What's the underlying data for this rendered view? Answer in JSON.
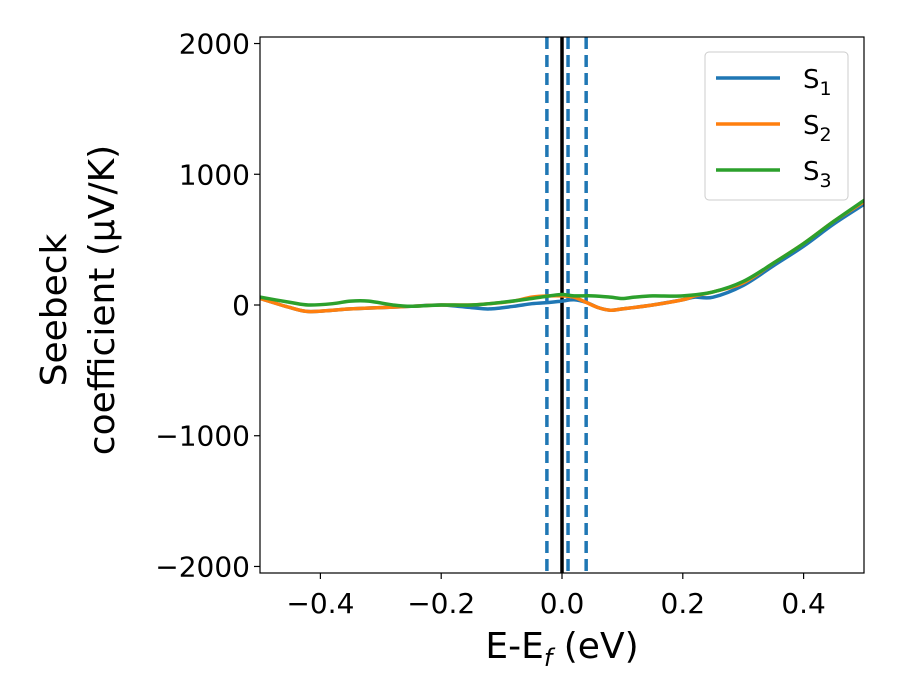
{
  "chart_data": {
    "type": "line",
    "xlabel": "E-E_f (eV)",
    "xlabel_parts": {
      "main": "E-E",
      "sub": "f",
      "rest": " (eV)"
    },
    "ylabel_line1": "Seebeck",
    "ylabel_line2": "coefficient  (μV/K)",
    "xlim": [
      -0.5,
      0.5
    ],
    "ylim": [
      -2050,
      2050
    ],
    "xticks": [
      -0.4,
      -0.2,
      0.0,
      0.2,
      0.4
    ],
    "xtick_labels": [
      "−0.4",
      "−0.2",
      "0.0",
      "0.2",
      "0.4"
    ],
    "yticks": [
      -2000,
      -1000,
      0,
      1000,
      2000
    ],
    "ytick_labels": [
      "−2000",
      "−1000",
      "0",
      "1000",
      "2000"
    ],
    "grid": false,
    "legend_position": "top-right",
    "vertical_lines": [
      {
        "x": -0.025,
        "style": "dashed",
        "color": "#1f77b4"
      },
      {
        "x": 0.0,
        "style": "solid",
        "color": "#000000"
      },
      {
        "x": 0.01,
        "style": "dashed",
        "color": "#1f77b4"
      },
      {
        "x": 0.04,
        "style": "dashed",
        "color": "#1f77b4"
      }
    ],
    "series": [
      {
        "name": "S_1",
        "label_main": "S",
        "label_sub": "1",
        "color": "#1f77b4",
        "x": [
          -0.5,
          -0.45,
          -0.42,
          -0.38,
          -0.35,
          -0.3,
          -0.25,
          -0.2,
          -0.15,
          -0.12,
          -0.08,
          -0.05,
          -0.02,
          0.0,
          0.02,
          0.04,
          0.06,
          0.08,
          0.1,
          0.15,
          0.2,
          0.22,
          0.25,
          0.3,
          0.35,
          0.4,
          0.45,
          0.5
        ],
        "y": [
          50,
          -20,
          -50,
          -40,
          -30,
          -20,
          -10,
          0,
          -20,
          -30,
          -10,
          10,
          20,
          30,
          40,
          20,
          -20,
          -40,
          -30,
          0,
          40,
          60,
          60,
          150,
          300,
          450,
          620,
          770
        ]
      },
      {
        "name": "S_2",
        "label_main": "S",
        "label_sub": "2",
        "color": "#ff7f0e",
        "x": [
          -0.5,
          -0.45,
          -0.42,
          -0.38,
          -0.35,
          -0.3,
          -0.25,
          -0.2,
          -0.15,
          -0.12,
          -0.08,
          -0.05,
          -0.02,
          0.0,
          0.02,
          0.04,
          0.06,
          0.08,
          0.1,
          0.15,
          0.2,
          0.22,
          0.25,
          0.3,
          0.35,
          0.4,
          0.45,
          0.5
        ],
        "y": [
          50,
          -20,
          -50,
          -40,
          -30,
          -20,
          -10,
          0,
          0,
          10,
          30,
          60,
          70,
          70,
          60,
          20,
          -20,
          -40,
          -30,
          0,
          40,
          70,
          100,
          170,
          320,
          470,
          640,
          790
        ]
      },
      {
        "name": "S_3",
        "label_main": "S",
        "label_sub": "3",
        "color": "#2ca02c",
        "x": [
          -0.5,
          -0.45,
          -0.42,
          -0.38,
          -0.35,
          -0.32,
          -0.28,
          -0.25,
          -0.2,
          -0.15,
          -0.1,
          -0.05,
          -0.02,
          0.0,
          0.02,
          0.05,
          0.08,
          0.1,
          0.12,
          0.15,
          0.2,
          0.25,
          0.3,
          0.35,
          0.4,
          0.45,
          0.5
        ],
        "y": [
          60,
          20,
          0,
          10,
          30,
          30,
          0,
          -10,
          0,
          0,
          20,
          50,
          70,
          80,
          70,
          70,
          60,
          50,
          60,
          70,
          70,
          100,
          180,
          320,
          470,
          640,
          800
        ]
      }
    ]
  }
}
